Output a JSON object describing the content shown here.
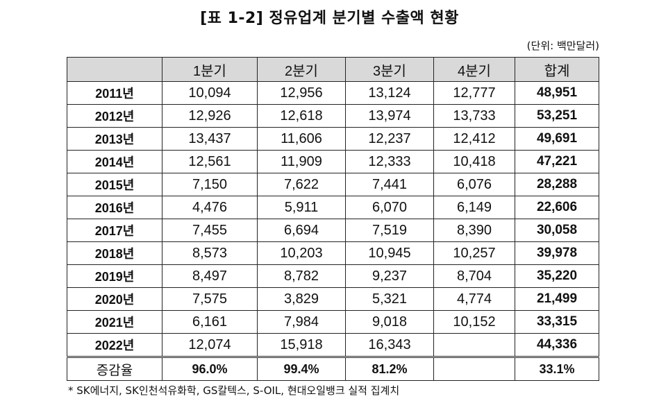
{
  "title": "[표 1-2] 정유업계 분기별 수출액 현황",
  "unit": "(단위: 백만달러)",
  "table": {
    "corner": "",
    "headers": [
      "1분기",
      "2분기",
      "3분기",
      "4분기",
      "합계"
    ],
    "rows": [
      {
        "label": "2011년",
        "values": [
          "10,094",
          "12,956",
          "13,124",
          "12,777"
        ],
        "total": "48,951"
      },
      {
        "label": "2012년",
        "values": [
          "12,926",
          "12,618",
          "13,974",
          "13,733"
        ],
        "total": "53,251"
      },
      {
        "label": "2013년",
        "values": [
          "13,437",
          "11,606",
          "12,237",
          "12,412"
        ],
        "total": "49,691"
      },
      {
        "label": "2014년",
        "values": [
          "12,561",
          "11,909",
          "12,333",
          "10,418"
        ],
        "total": "47,221"
      },
      {
        "label": "2015년",
        "values": [
          "7,150",
          "7,622",
          "7,441",
          "6,076"
        ],
        "total": "28,288"
      },
      {
        "label": "2016년",
        "values": [
          "4,476",
          "5,911",
          "6,070",
          "6,149"
        ],
        "total": "22,606"
      },
      {
        "label": "2017년",
        "values": [
          "7,455",
          "6,694",
          "7,519",
          "8,390"
        ],
        "total": "30,058"
      },
      {
        "label": "2018년",
        "values": [
          "8,573",
          "10,203",
          "10,945",
          "10,257"
        ],
        "total": "39,978"
      },
      {
        "label": "2019년",
        "values": [
          "8,497",
          "8,782",
          "9,237",
          "8,704"
        ],
        "total": "35,220"
      },
      {
        "label": "2020년",
        "values": [
          "7,575",
          "3,829",
          "5,321",
          "4,774"
        ],
        "total": "21,499"
      },
      {
        "label": "2021년",
        "values": [
          "6,161",
          "7,984",
          "9,018",
          "10,152"
        ],
        "total": "33,315"
      },
      {
        "label": "2022년",
        "values": [
          "12,074",
          "15,918",
          "16,343",
          ""
        ],
        "total": "44,336"
      }
    ],
    "growth": {
      "label": "증감율",
      "values": [
        "96.0%",
        "99.4%",
        "81.2%",
        ""
      ],
      "total": "33.1%"
    }
  },
  "footnote": "* SK에너지, SK인천석유화학, GS칼텍스, S-OIL, 현대오일뱅크 실적 집계치"
}
